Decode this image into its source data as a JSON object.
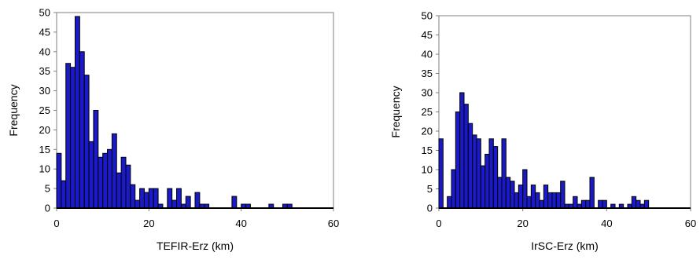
{
  "chart_data": [
    {
      "type": "bar",
      "xlabel": "TEFIR-Erz (km)",
      "ylabel": "Frequency",
      "xlim": [
        0,
        60
      ],
      "ylim": [
        0,
        50
      ],
      "xticks": [
        "0",
        "20",
        "40",
        "60"
      ],
      "yticks": [
        "0",
        "5",
        "10",
        "15",
        "20",
        "25",
        "30",
        "35",
        "40",
        "45",
        "50"
      ],
      "bin_width": 1,
      "bin_starts": [
        0,
        1,
        2,
        3,
        4,
        5,
        6,
        7,
        8,
        9,
        10,
        11,
        12,
        13,
        14,
        15,
        16,
        17,
        18,
        19,
        20,
        21,
        22,
        23,
        24,
        25,
        26,
        27,
        28,
        29,
        30,
        31,
        32,
        33,
        34,
        35,
        36,
        37,
        38,
        39,
        40,
        41,
        42,
        43,
        44,
        45,
        46,
        47,
        48,
        49,
        50,
        51
      ],
      "values": [
        14,
        7,
        37,
        36,
        49,
        40,
        34,
        17,
        25,
        13,
        14,
        15,
        19,
        9,
        13,
        11,
        6,
        2,
        5,
        4,
        5,
        5,
        1,
        0,
        5,
        2,
        5,
        1,
        3,
        0,
        4,
        1,
        1,
        0,
        0,
        0,
        0,
        0,
        3,
        0,
        1,
        1,
        0,
        0,
        0,
        0,
        1,
        0,
        0,
        1,
        1,
        0
      ],
      "bar_color": "#1a1ac8"
    },
    {
      "type": "bar",
      "xlabel": "IrSC-Erz (km)",
      "ylabel": "Frequency",
      "xlim": [
        0,
        60
      ],
      "ylim": [
        0,
        50
      ],
      "xticks": [
        "0",
        "20",
        "40",
        "60"
      ],
      "yticks": [
        "0",
        "5",
        "10",
        "15",
        "20",
        "25",
        "30",
        "35",
        "40",
        "45",
        "50"
      ],
      "bin_width": 1,
      "bin_starts": [
        0,
        1,
        2,
        3,
        4,
        5,
        6,
        7,
        8,
        9,
        10,
        11,
        12,
        13,
        14,
        15,
        16,
        17,
        18,
        19,
        20,
        21,
        22,
        23,
        24,
        25,
        26,
        27,
        28,
        29,
        30,
        31,
        32,
        33,
        34,
        35,
        36,
        37,
        38,
        39,
        40,
        41,
        42,
        43,
        44,
        45,
        46,
        47,
        48,
        49,
        50
      ],
      "values": [
        18,
        0,
        3,
        10,
        25,
        30,
        27,
        22,
        19,
        18,
        11,
        14,
        18,
        16,
        8,
        18,
        8,
        7,
        4,
        6,
        10,
        3,
        6,
        4,
        2,
        6,
        4,
        4,
        4,
        7,
        1,
        1,
        3,
        1,
        2,
        2,
        8,
        0,
        2,
        2,
        0,
        1,
        0,
        1,
        0,
        1,
        3,
        2,
        1,
        2,
        0
      ],
      "bar_color": "#1a1ac8"
    }
  ]
}
